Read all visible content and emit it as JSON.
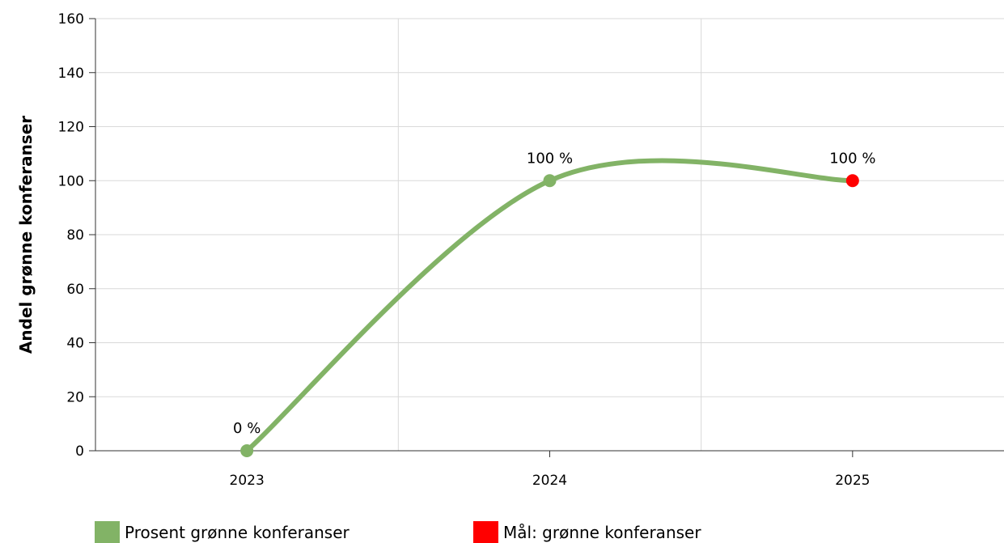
{
  "chart_data": {
    "type": "line",
    "categories": [
      "2023",
      "2024",
      "2025"
    ],
    "ylabel": "Andel grønne konferanser",
    "ylim": [
      0,
      160
    ],
    "yticks": [
      0,
      20,
      40,
      60,
      80,
      100,
      120,
      140,
      160
    ],
    "grid": true,
    "legend_placement": "bottom",
    "series": [
      {
        "name": "Prosent grønne konferanser",
        "color": "#82b366",
        "values": [
          0,
          100,
          null
        ],
        "labels": [
          "0 %",
          "100 %",
          null
        ]
      },
      {
        "name": "Mål: grønne konferanser",
        "color": "#ff0000",
        "values": [
          null,
          null,
          100
        ],
        "labels": [
          null,
          null,
          "100 %"
        ]
      }
    ]
  }
}
